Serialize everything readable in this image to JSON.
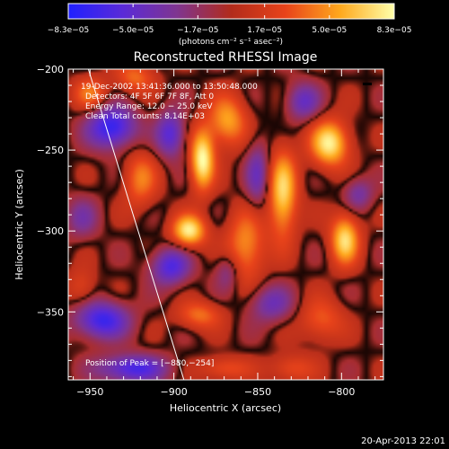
{
  "timestamp": "20-Apr-2013 22:01",
  "chart_data": {
    "type": "heatmap",
    "title": "Reconstructed RHESSI Image",
    "xlabel": "Heliocentric X (arcsec)",
    "ylabel": "Heliocentric Y (arcsec)",
    "xlim": [
      -963,
      -775
    ],
    "ylim": [
      -392,
      -200
    ],
    "x_ticks": [
      -950,
      -900,
      -850,
      -800
    ],
    "x_tick_labels": [
      "−950",
      "−900",
      "−850",
      "−800"
    ],
    "y_ticks": [
      -200,
      -250,
      -300,
      -350
    ],
    "y_tick_labels": [
      "−200",
      "−250",
      "−300",
      "−350"
    ],
    "colorbar": {
      "min": -8.3e-05,
      "max": 8.3e-05,
      "tick_values": [
        -8.3e-05,
        -5e-05,
        -1.7e-05,
        1.7e-05,
        5e-05,
        8.3e-05
      ],
      "tick_labels": [
        "−8.3e−05",
        "−5.0e−05",
        "−1.7e−05",
        "1.7e−05",
        "5.0e−05",
        "8.3e−05"
      ],
      "unit_label": "(photons cm⁻² s⁻¹ asec⁻²)",
      "stops": [
        "#2020ff",
        "#5a2ad8",
        "#7f3590",
        "#b22b1b",
        "#e8431a",
        "#ffa81d",
        "#ffffaa"
      ]
    },
    "annotations": [
      "19-Dec-2002 13:41:36.000 to 13:50:48.000",
      "Detectors: 4F 5F 6F 7F 8F, Att 0",
      "Energy Range: 12.0 − 25.0 keV",
      "Clean     Total counts: 8.14E+03"
    ],
    "peak_label": "Position of Peak = [−880,−254]",
    "peak": [
      -880,
      -254
    ],
    "limb_line": [
      [
        -951,
        -200
      ],
      [
        -894,
        -392
      ]
    ],
    "sources": [
      {
        "x": -883,
        "y": -256,
        "sx": 5,
        "sy": 13,
        "v": 8.3e-05
      },
      {
        "x": -891,
        "y": -300,
        "sx": 7,
        "sy": 7,
        "v": 7.8e-05
      },
      {
        "x": -868,
        "y": -232,
        "sx": 8,
        "sy": 11,
        "v": 5.5e-05
      },
      {
        "x": -857,
        "y": -309,
        "sx": 8,
        "sy": 15,
        "v": 5e-05
      },
      {
        "x": -835,
        "y": -277,
        "sx": 6,
        "sy": 19,
        "v": 7e-05
      },
      {
        "x": -807,
        "y": -246,
        "sx": 8,
        "sy": 10,
        "v": 7.8e-05
      },
      {
        "x": -798,
        "y": -305,
        "sx": 6,
        "sy": 11,
        "v": 7.2e-05
      },
      {
        "x": -812,
        "y": -355,
        "sx": 9,
        "sy": 9,
        "v": 3.5e-05
      },
      {
        "x": -885,
        "y": -352,
        "sx": 9,
        "sy": 6,
        "v": 4e-05
      },
      {
        "x": -920,
        "y": -268,
        "sx": 7,
        "sy": 12,
        "v": 4.2e-05
      },
      {
        "x": -950,
        "y": -215,
        "sx": 7,
        "sy": 7,
        "v": 4e-05
      },
      {
        "x": -923,
        "y": -205,
        "sx": 8,
        "sy": 7,
        "v": 3.8e-05
      },
      {
        "x": -955,
        "y": -335,
        "sx": 6,
        "sy": 8,
        "v": 2.5e-05
      },
      {
        "x": -870,
        "y": -385,
        "sx": 10,
        "sy": 5,
        "v": 3.2e-05
      },
      {
        "x": -830,
        "y": -385,
        "sx": 9,
        "sy": 6,
        "v": 3e-05
      },
      {
        "x": -937,
        "y": -236,
        "sx": 10,
        "sy": 9,
        "v": -7.5e-05
      },
      {
        "x": -902,
        "y": -240,
        "sx": 6,
        "sy": 10,
        "v": -5.5e-05
      },
      {
        "x": -902,
        "y": -322,
        "sx": 8,
        "sy": 8,
        "v": -6e-05
      },
      {
        "x": -943,
        "y": -355,
        "sx": 11,
        "sy": 8,
        "v": -7e-05
      },
      {
        "x": -925,
        "y": -385,
        "sx": 14,
        "sy": 6,
        "v": -6.5e-05
      },
      {
        "x": -850,
        "y": -265,
        "sx": 5,
        "sy": 15,
        "v": -4e-05
      },
      {
        "x": -823,
        "y": -220,
        "sx": 7,
        "sy": 8,
        "v": -4.5e-05
      },
      {
        "x": -842,
        "y": -345,
        "sx": 9,
        "sy": 8,
        "v": -4e-05
      },
      {
        "x": -790,
        "y": -277,
        "sx": 6,
        "sy": 7,
        "v": -3.5e-05
      },
      {
        "x": -868,
        "y": -325,
        "sx": 5,
        "sy": 8,
        "v": -3e-05
      },
      {
        "x": -955,
        "y": -292,
        "sx": 7,
        "sy": 9,
        "v": -3e-05
      }
    ]
  }
}
